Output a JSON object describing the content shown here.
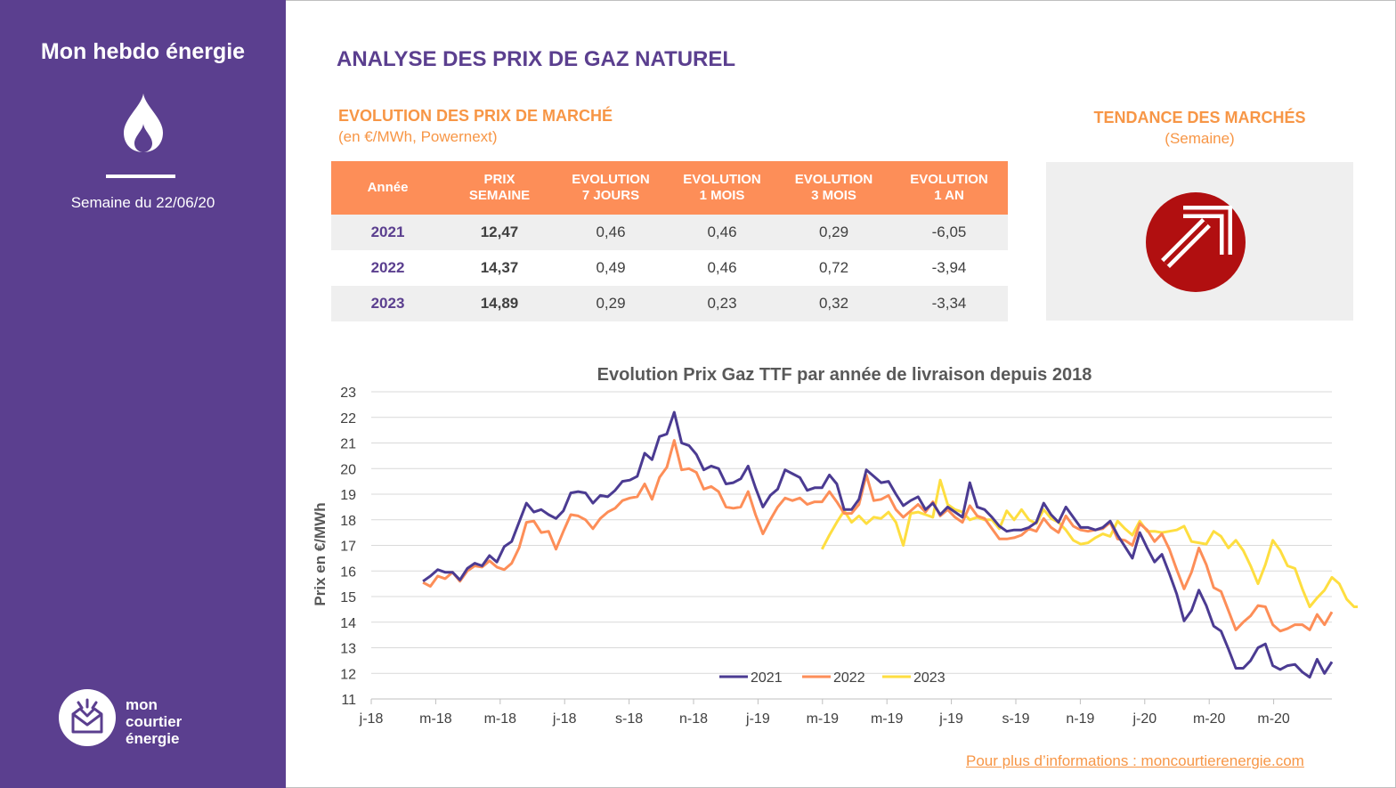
{
  "sidebar": {
    "title": "Mon hebdo énergie",
    "week": "Semaine du 22/06/20",
    "flame_icon": "flame-icon",
    "brand": [
      "mon",
      "courtier",
      "énergie"
    ]
  },
  "header": {
    "title": "ANALYSE DES PRIX DE GAZ NATUREL"
  },
  "market": {
    "title": "EVOLUTION DES PRIX DE MARCHÉ",
    "subtitle": "(en €/MWh, Powernext)",
    "columns": [
      "Année",
      "PRIX\nSEMAINE",
      "EVOLUTION\n7 JOURS",
      "EVOLUTION\n1 MOIS",
      "EVOLUTION\n3 MOIS",
      "EVOLUTION\n1 AN"
    ],
    "rows": [
      [
        "2021",
        "12,47",
        "0,46",
        "0,46",
        "0,29",
        "-6,05"
      ],
      [
        "2022",
        "14,37",
        "0,49",
        "0,46",
        "0,72",
        "-3,94"
      ],
      [
        "2023",
        "14,89",
        "0,29",
        "0,23",
        "0,32",
        "-3,34"
      ]
    ]
  },
  "trend": {
    "title": "TENDANCE DES MARCHÉS",
    "subtitle": "(Semaine)",
    "icon": "arrow-up-right-icon",
    "color": "#b10f10"
  },
  "colors": {
    "accent": "#5b3f8f",
    "orange": "#f79646",
    "header_orange": "#fd8e58"
  },
  "chart_data": {
    "type": "line",
    "title": "Evolution Prix Gaz TTF par année de livraison depuis 2018",
    "ylabel": "Prix en €/MWh",
    "xlabel": "",
    "ylim": [
      11,
      23
    ],
    "yticks": [
      11,
      12,
      13,
      14,
      15,
      16,
      17,
      18,
      19,
      20,
      21,
      22,
      23
    ],
    "x_tick_labels": [
      "j-18",
      "m-18",
      "m-18",
      "j-18",
      "s-18",
      "n-18",
      "j-19",
      "m-19",
      "m-19",
      "j-19",
      "s-19",
      "n-19",
      "j-20",
      "m-20",
      "m-20"
    ],
    "legend": "bottom-center",
    "grid": true,
    "series": [
      {
        "name": "2021",
        "color": "#4b3b92",
        "start_week": 7,
        "values": [
          15.6,
          15.8,
          16.05,
          15.95,
          15.95,
          15.65,
          16.1,
          16.3,
          16.2,
          16.6,
          16.35,
          16.95,
          17.15,
          17.9,
          18.65,
          18.3,
          18.4,
          18.2,
          18.05,
          18.35,
          19.05,
          19.1,
          19.05,
          18.65,
          18.95,
          18.9,
          19.15,
          19.5,
          19.55,
          19.7,
          20.6,
          20.35,
          21.25,
          21.35,
          22.2,
          21.0,
          20.9,
          20.55,
          19.95,
          20.1,
          20.0,
          19.4,
          19.45,
          19.6,
          20.1,
          19.25,
          18.5,
          18.95,
          19.2,
          19.95,
          19.8,
          19.65,
          19.15,
          19.25,
          19.25,
          19.75,
          19.4,
          18.4,
          18.4,
          18.8,
          19.95,
          19.7,
          19.45,
          19.5,
          19.0,
          18.55,
          18.75,
          18.9,
          18.4,
          18.65,
          18.2,
          18.5,
          18.3,
          18.1,
          19.45,
          18.5,
          18.4,
          18.1,
          17.75,
          17.55,
          17.6,
          17.6,
          17.7,
          17.9,
          18.65,
          18.2,
          17.9,
          18.5,
          18.1,
          17.7,
          17.7,
          17.6,
          17.7,
          17.95,
          17.4,
          16.95,
          16.5,
          17.5,
          16.9,
          16.35,
          16.65,
          15.9,
          15.1,
          14.05,
          14.45,
          15.25,
          14.65,
          13.85,
          13.65,
          12.95,
          12.2,
          12.2,
          12.5,
          13.0,
          13.15,
          12.3,
          12.15,
          12.3,
          12.35,
          12.05,
          11.85,
          12.55,
          12.0,
          12.45
        ]
      },
      {
        "name": "2022",
        "color": "#fd8e58",
        "start_week": 7,
        "values": [
          15.55,
          15.4,
          15.8,
          15.7,
          15.95,
          15.6,
          16.0,
          16.2,
          16.15,
          16.4,
          16.15,
          16.05,
          16.3,
          16.9,
          17.9,
          17.95,
          17.5,
          17.55,
          16.85,
          17.55,
          18.2,
          18.15,
          18.0,
          17.65,
          18.05,
          18.3,
          18.45,
          18.75,
          18.85,
          18.9,
          19.4,
          18.8,
          19.65,
          20.05,
          21.1,
          19.95,
          20.0,
          19.85,
          19.2,
          19.3,
          19.1,
          18.5,
          18.45,
          18.5,
          19.1,
          18.2,
          17.45,
          18.0,
          18.5,
          18.85,
          18.75,
          18.85,
          18.6,
          18.7,
          18.7,
          19.1,
          18.7,
          18.25,
          18.25,
          18.6,
          19.75,
          18.75,
          18.8,
          18.95,
          18.4,
          18.1,
          18.35,
          18.6,
          18.3,
          18.7,
          18.15,
          18.4,
          18.1,
          17.9,
          18.55,
          18.15,
          18.05,
          17.65,
          17.25,
          17.25,
          17.3,
          17.4,
          17.65,
          17.55,
          18.05,
          17.7,
          17.5,
          18.15,
          17.75,
          17.6,
          17.55,
          17.6,
          17.65,
          17.9,
          17.25,
          17.2,
          17.0,
          17.85,
          17.6,
          17.15,
          17.45,
          16.85,
          16.05,
          15.3,
          15.95,
          16.9,
          16.25,
          15.35,
          15.2,
          14.45,
          13.7,
          14.0,
          14.25,
          14.65,
          14.6,
          13.9,
          13.65,
          13.75,
          13.9,
          13.9,
          13.7,
          14.3,
          13.9,
          14.4
        ]
      },
      {
        "name": "2023",
        "color": "#fede40",
        "start_week": 61,
        "values": [
          16.85,
          17.4,
          17.9,
          18.35,
          17.9,
          18.15,
          17.85,
          18.1,
          18.05,
          18.3,
          17.9,
          17.0,
          18.25,
          18.3,
          18.2,
          18.1,
          19.55,
          18.6,
          18.4,
          18.3,
          18.0,
          18.1,
          18.0,
          18.0,
          17.65,
          18.35,
          18.0,
          18.4,
          18.0,
          17.85,
          18.4,
          18.05,
          17.9,
          17.6,
          17.2,
          17.05,
          17.1,
          17.3,
          17.45,
          17.35,
          17.95,
          17.65,
          17.4,
          17.95,
          17.55,
          17.55,
          17.5,
          17.55,
          17.6,
          17.75,
          17.15,
          17.1,
          17.05,
          17.55,
          17.35,
          16.9,
          17.2,
          16.8,
          16.2,
          15.5,
          16.25,
          17.2,
          16.8,
          16.2,
          16.1,
          15.3,
          14.6,
          14.95,
          15.25,
          15.75,
          15.5,
          14.9,
          14.6,
          14.6,
          14.65,
          14.5,
          14.35,
          14.95,
          14.6,
          14.9
        ]
      }
    ]
  },
  "footer": {
    "text": "Pour plus d’informations : moncourtierenergie.com"
  }
}
